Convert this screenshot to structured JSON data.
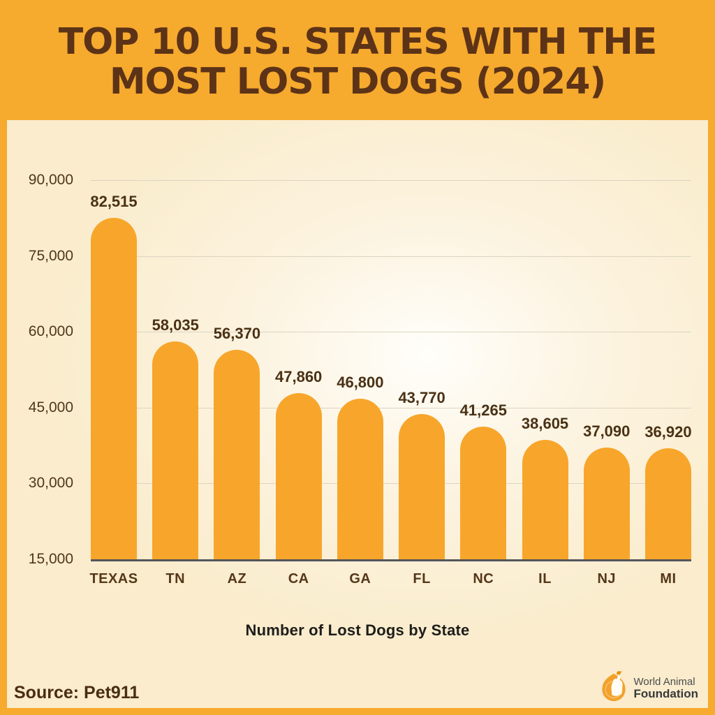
{
  "header": {
    "title_line1": "TOP 10 U.S. STATES WITH THE",
    "title_line2": "MOST LOST DOGS (2024)"
  },
  "chart_data": {
    "type": "bar",
    "title": "Top 10 U.S. States with the Most Lost Dogs (2024)",
    "categories": [
      "TEXAS",
      "TN",
      "AZ",
      "CA",
      "GA",
      "FL",
      "NC",
      "IL",
      "NJ",
      "MI"
    ],
    "values": [
      82515,
      58035,
      56370,
      47860,
      46800,
      43770,
      41265,
      38605,
      37090,
      36920
    ],
    "value_labels": [
      "82,515",
      "58,035",
      "56,370",
      "47,860",
      "46,800",
      "43,770",
      "41,265",
      "38,605",
      "37,090",
      "36,920"
    ],
    "xlabel": "Number of Lost Dogs by State",
    "ylabel": "",
    "y_ticks": [
      {
        "label": "90,000",
        "value": 90000
      },
      {
        "label": "75,000",
        "value": 75000
      },
      {
        "label": "60,000",
        "value": 60000
      },
      {
        "label": "45,000",
        "value": 45000
      },
      {
        "label": "30,000",
        "value": 30000
      },
      {
        "label": "15,000",
        "value": 15000
      }
    ],
    "ylim": [
      15000,
      90000
    ],
    "grid": true,
    "legend": false,
    "bar_color": "#F7A62B"
  },
  "footer": {
    "source": "Source: Pet911",
    "logo": {
      "line1": "World Animal",
      "line2": "Foundation"
    }
  },
  "colors": {
    "header_bg": "#F6AA2E",
    "panel_bg": "#FAEDCD",
    "title_text": "#5C3317",
    "bar": "#F7A62B",
    "gridline": "#DCD4C2",
    "baseline": "#54555A",
    "tick_text": "#4F371C",
    "value_text": "#4A3115",
    "axis_title_text": "#1E1D1B",
    "source_text": "#4A2D12"
  }
}
